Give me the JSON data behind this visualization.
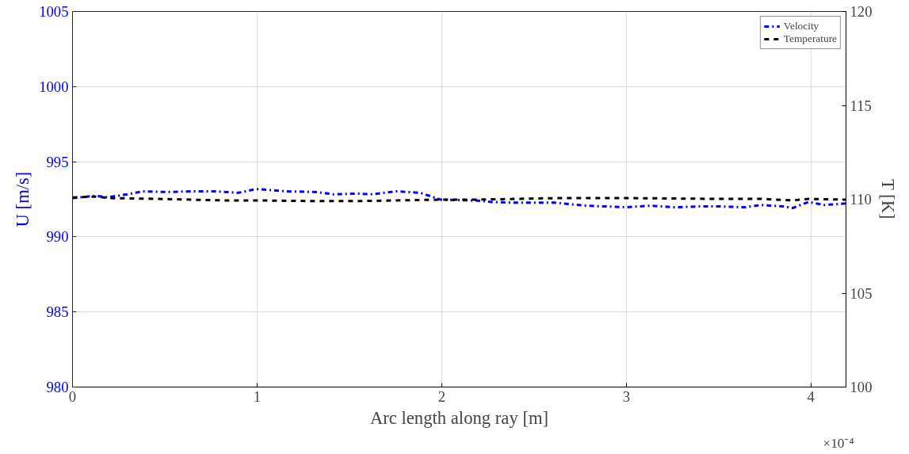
{
  "chart_data": {
    "type": "line",
    "xlabel": "Arc length along ray [m]",
    "ylabel": "U [m/s]",
    "y2label": "T [K]",
    "annotations": [
      "×10⁻⁴"
    ],
    "xlim": [
      0,
      4.19
    ],
    "xticks": [
      0,
      1,
      2,
      3,
      4
    ],
    "ylim": [
      980,
      1005
    ],
    "yticks": [
      980,
      985,
      990,
      995,
      1000,
      1005
    ],
    "y2lim": [
      100,
      120
    ],
    "y2ticks": [
      100,
      105,
      110,
      115,
      120
    ],
    "grid": true,
    "legend": "top right",
    "series": [
      {
        "name": "Velocity",
        "color": "#0000ff",
        "line_style": "dashdot",
        "x": [
          0,
          0.124,
          0.189,
          0.296,
          0.382,
          0.511,
          0.639,
          0.768,
          0.897,
          0.996,
          1.155,
          1.326,
          1.412,
          1.541,
          1.627,
          1.755,
          1.884,
          1.996,
          2.185,
          2.27,
          2.399,
          2.614,
          2.785,
          3.0,
          3.129,
          3.258,
          3.386,
          3.515,
          3.644,
          3.73,
          3.858,
          3.901,
          3.987,
          4.073,
          4.189
        ],
        "values": [
          992.58,
          992.73,
          992.63,
          992.83,
          993.03,
          992.98,
          993.03,
          993.03,
          992.93,
          993.18,
          993.03,
          992.98,
          992.83,
          992.88,
          992.83,
          993.03,
          992.93,
          992.47,
          992.42,
          992.32,
          992.27,
          992.27,
          992.07,
          991.97,
          992.07,
          991.97,
          992.02,
          992.02,
          991.97,
          992.12,
          992.02,
          991.92,
          992.32,
          992.12,
          992.22
        ]
      },
      {
        "name": "Temperature",
        "color": "#000000",
        "line_style": "dashed",
        "axis": "y2",
        "x": [
          0,
          0.124,
          0.21,
          0.468,
          0.811,
          0.996,
          1.326,
          1.541,
          1.755,
          1.996,
          2.185,
          2.399,
          2.614,
          3.043,
          3.472,
          3.73,
          3.901,
          3.987,
          4.189
        ],
        "values": [
          110.1,
          110.14,
          110.06,
          110.02,
          109.94,
          109.94,
          109.9,
          109.9,
          109.94,
          109.98,
          109.98,
          110.02,
          110.06,
          110.06,
          110.02,
          110.02,
          109.94,
          110.02,
          109.98
        ]
      }
    ]
  }
}
